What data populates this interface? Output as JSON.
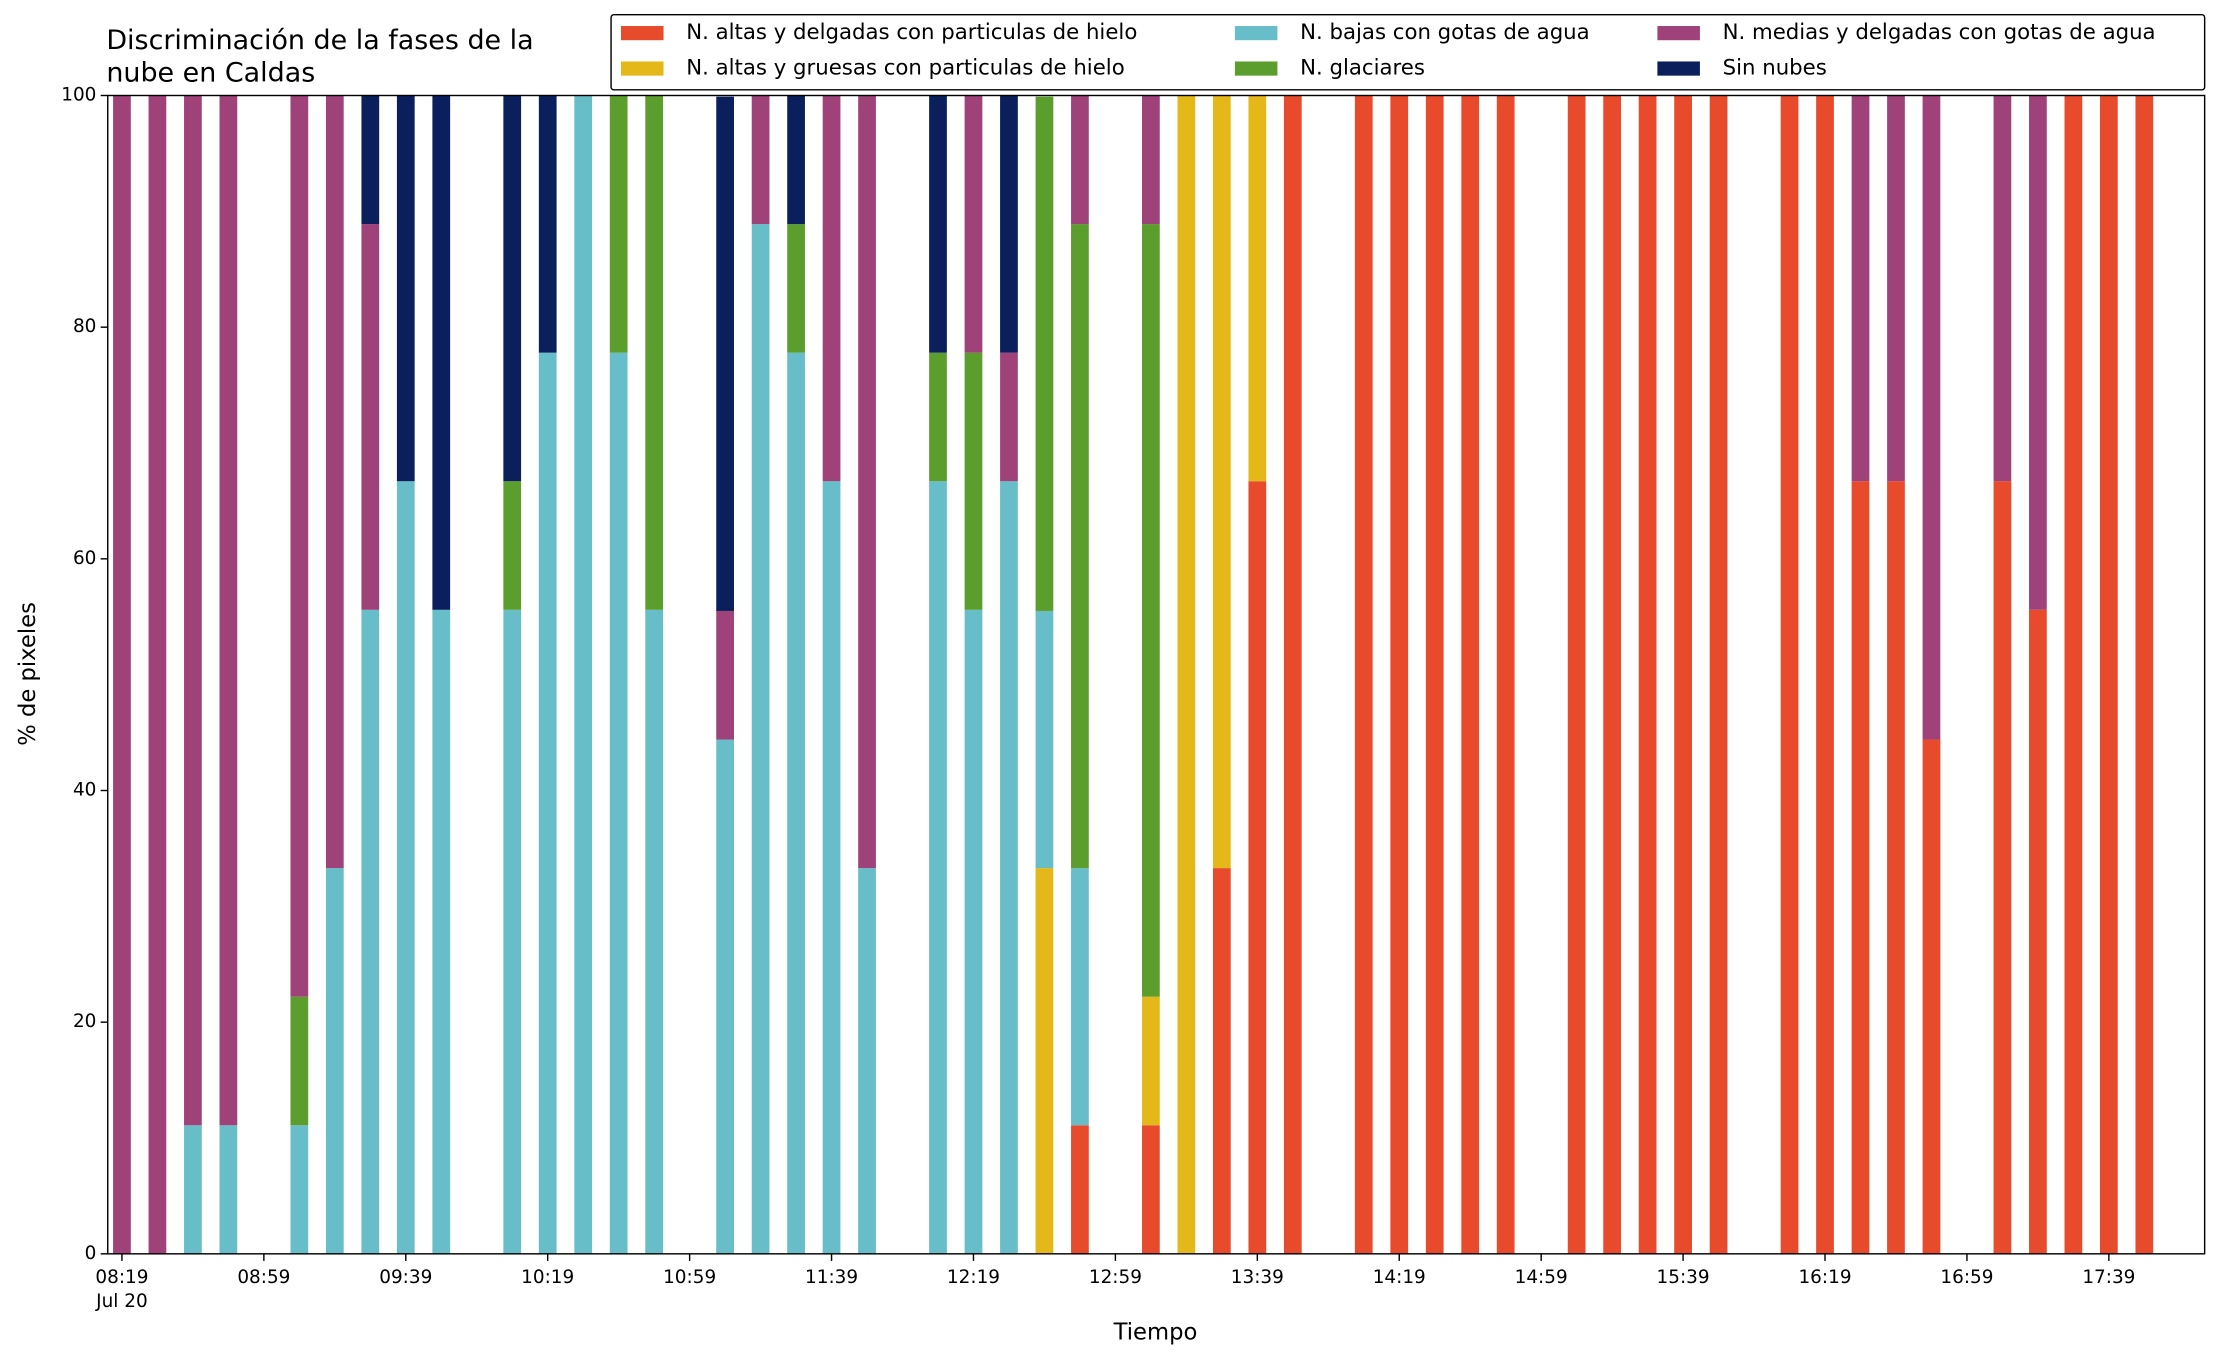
{
  "chart_data": {
    "type": "stacked_bar",
    "title": [
      "Discriminación de la fases de la",
      "nube en Caldas"
    ],
    "xlabel": "Tiempo",
    "ylabel": "% de pixeles",
    "x": [
      "08:19",
      "08:29",
      "08:39",
      "08:49",
      "09:09",
      "09:19",
      "09:29",
      "09:39",
      "09:49",
      "10:09",
      "10:19",
      "10:29",
      "10:39",
      "10:49",
      "11:09",
      "11:19",
      "11:29",
      "11:39",
      "11:49",
      "12:09",
      "12:19",
      "12:29",
      "12:39",
      "12:49",
      "13:09",
      "13:19",
      "13:29",
      "13:39",
      "13:49",
      "14:09",
      "14:19",
      "14:29",
      "14:39",
      "14:49",
      "15:09",
      "15:19",
      "15:29",
      "15:39",
      "15:49",
      "16:09",
      "16:19",
      "16:29",
      "16:39",
      "16:49",
      "17:09",
      "17:19",
      "17:29",
      "17:39",
      "17:49"
    ],
    "xlim": [
      "08:15",
      "18:06"
    ],
    "xticks": [
      "08:19",
      "08:59",
      "09:39",
      "10:19",
      "10:59",
      "11:39",
      "12:19",
      "12:59",
      "13:39",
      "14:19",
      "14:59",
      "15:39",
      "16:19",
      "16:59",
      "17:39"
    ],
    "date_label": "Jul 20",
    "ylim": [
      0,
      100
    ],
    "yticks": [
      0,
      20,
      40,
      60,
      80,
      100
    ],
    "grid": false,
    "legend": "top",
    "series": [
      {
        "name": "N. altas y delgadas con particulas de hielo",
        "color": "#e84a2c",
        "values": [
          0,
          0,
          0,
          0,
          0,
          0,
          0,
          0,
          0,
          0,
          0,
          0,
          0,
          0,
          0,
          0,
          0,
          0,
          0,
          0,
          0,
          0,
          0,
          11.1,
          11.1,
          0,
          33.3,
          66.7,
          100,
          100,
          100,
          100,
          100,
          100,
          100,
          100,
          100,
          100,
          100,
          100,
          100,
          66.7,
          66.7,
          44.4,
          66.7,
          55.6,
          100,
          100,
          100
        ]
      },
      {
        "name": "N. altas y gruesas con particulas de hielo",
        "color": "#e5b81a",
        "values": [
          0,
          0,
          0,
          0,
          0,
          0,
          0,
          0,
          0,
          0,
          0,
          0,
          0,
          0,
          0,
          0,
          0,
          0,
          0,
          0,
          0,
          0,
          33.3,
          0,
          11.1,
          100,
          66.7,
          33.3,
          0,
          0,
          0,
          0,
          0,
          0,
          0,
          0,
          0,
          0,
          0,
          0,
          0,
          0,
          0,
          0,
          0,
          0,
          0,
          0,
          0
        ]
      },
      {
        "name": "N. bajas con gotas de agua",
        "color": "#67bec8",
        "values": [
          0,
          0,
          11.1,
          11.1,
          11.1,
          33.3,
          55.6,
          66.7,
          55.6,
          55.6,
          77.8,
          100,
          77.8,
          55.6,
          44.4,
          88.9,
          77.8,
          66.7,
          33.3,
          66.7,
          55.6,
          66.7,
          22.2,
          22.2,
          0,
          0,
          0,
          0,
          0,
          0,
          0,
          0,
          0,
          0,
          0,
          0,
          0,
          0,
          0,
          0,
          0,
          0,
          0,
          0,
          0,
          0,
          0,
          0,
          0
        ]
      },
      {
        "name": "N. glaciares",
        "color": "#5c9e2e",
        "values": [
          0,
          0,
          0,
          0,
          11.1,
          0,
          0,
          0,
          0,
          11.1,
          0,
          0,
          22.2,
          44.4,
          0,
          0,
          11.1,
          0,
          0,
          11.1,
          22.2,
          0,
          44.4,
          55.6,
          66.7,
          0,
          0,
          0,
          0,
          0,
          0,
          0,
          0,
          0,
          0,
          0,
          0,
          0,
          0,
          0,
          0,
          0,
          0,
          0,
          0,
          0,
          0,
          0,
          0
        ]
      },
      {
        "name": "N. medias y delgadas con gotas de agua",
        "color": "#a0427a",
        "values": [
          100,
          100,
          88.9,
          88.9,
          77.8,
          66.7,
          33.3,
          0,
          0,
          0,
          0,
          0,
          0,
          0,
          11.1,
          11.1,
          0,
          33.3,
          66.7,
          0,
          22.2,
          11.1,
          0,
          11.1,
          11.1,
          0,
          0,
          0,
          0,
          0,
          0,
          0,
          0,
          0,
          0,
          0,
          0,
          0,
          0,
          0,
          0,
          33.3,
          33.3,
          55.6,
          33.3,
          44.4,
          0,
          0,
          0
        ]
      },
      {
        "name": "Sin nubes",
        "color": "#0a1f5c",
        "values": [
          0,
          0,
          0,
          0,
          0,
          0,
          11.1,
          33.3,
          44.4,
          33.3,
          22.2,
          0,
          0,
          0,
          44.4,
          0,
          11.1,
          0,
          0,
          22.2,
          0,
          22.2,
          0,
          0,
          0,
          0,
          0,
          0,
          0,
          0,
          0,
          0,
          0,
          0,
          0,
          0,
          0,
          0,
          0,
          0,
          0,
          0,
          0,
          0,
          0,
          0,
          0,
          0,
          0
        ]
      }
    ]
  }
}
